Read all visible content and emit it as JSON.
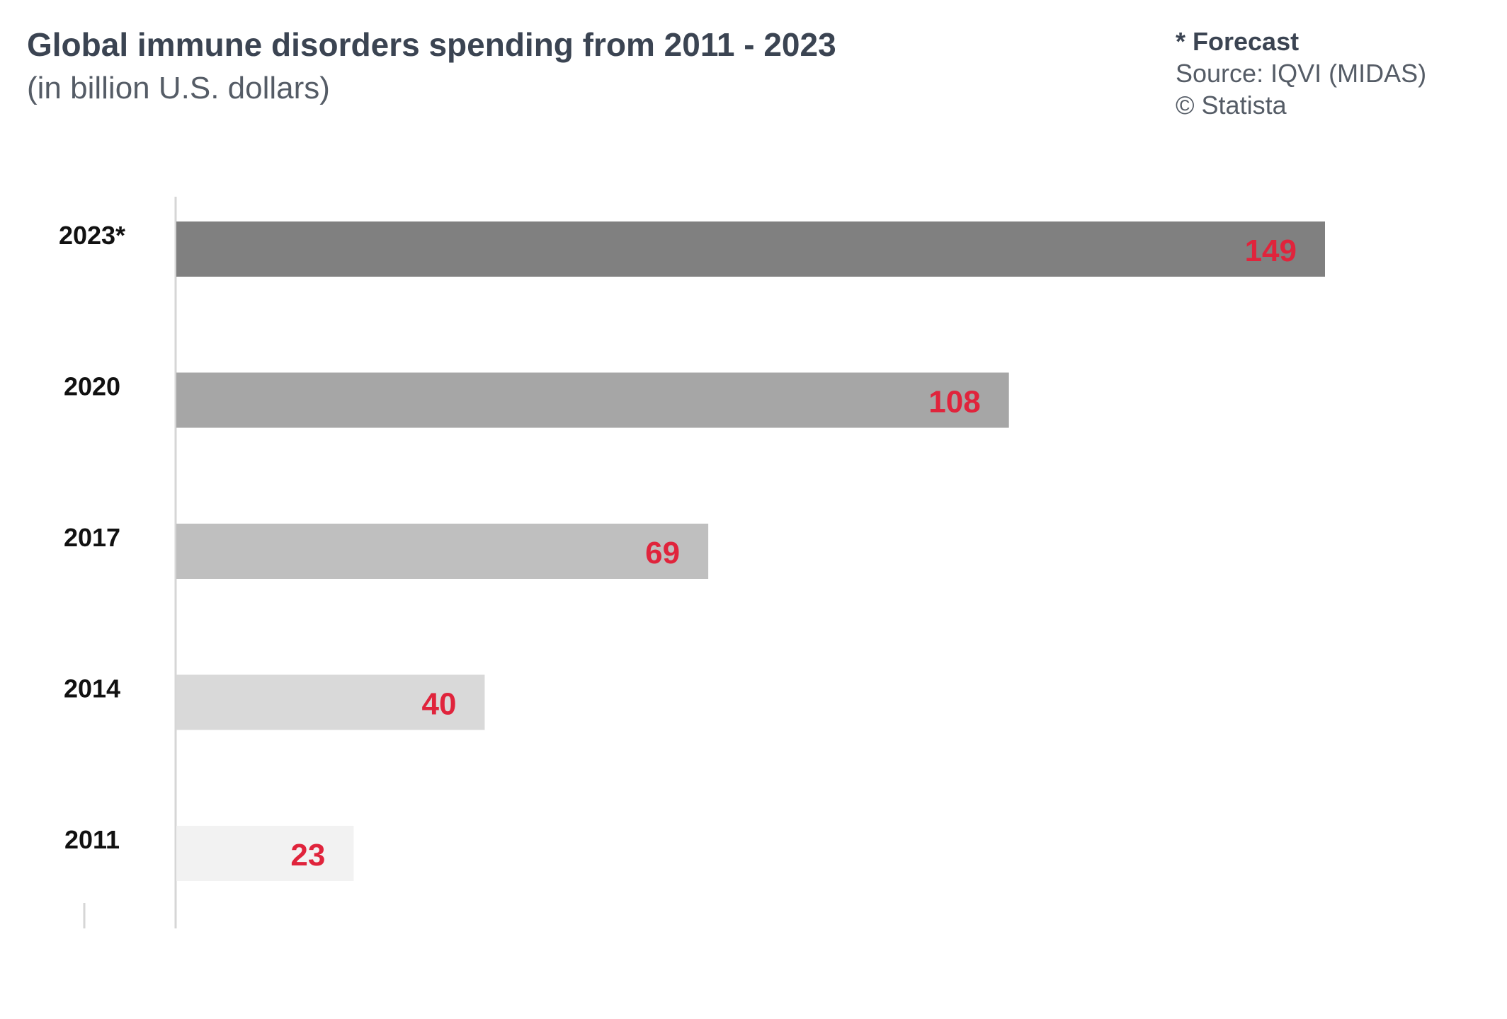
{
  "header": {
    "title": "Global immune disorders spending from 2011 - 2023",
    "subtitle": "(in billion U.S. dollars)"
  },
  "notes": {
    "forecast": "* Forecast",
    "source": "Source: IQVI (MIDAS)",
    "copyright": "© Statista"
  },
  "chart_data": {
    "type": "bar",
    "orientation": "horizontal",
    "title": "Global immune disorders spending from 2011 - 2023",
    "subtitle": "(in billion U.S. dollars)",
    "categories": [
      "2023*",
      "2020",
      "2017",
      "2014",
      "2011"
    ],
    "values": [
      149,
      108,
      69,
      40,
      23
    ],
    "bar_colors": [
      "#808080",
      "#a6a6a6",
      "#bfbfbf",
      "#d9d9d9",
      "#f2f2f2"
    ],
    "value_label_color": "#e0243c",
    "xlim": [
      0,
      160
    ],
    "grid": false,
    "legend": "none"
  }
}
